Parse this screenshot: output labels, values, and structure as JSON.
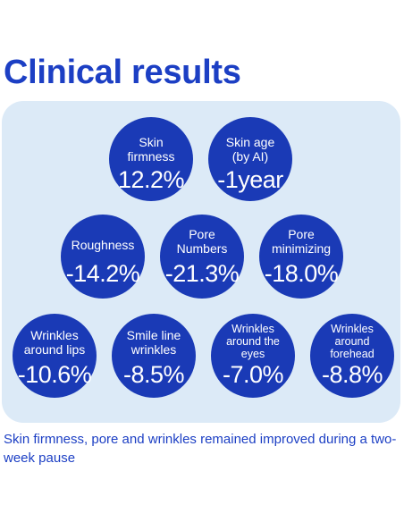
{
  "title": "Clinical results",
  "results": [
    {
      "label": "Skin firmness",
      "value": "12.2%"
    },
    {
      "label": "Skin age (by AI)",
      "value": "-1year"
    },
    {
      "label": "Roughness",
      "value": "-14.2%"
    },
    {
      "label": "Pore Numbers",
      "value": "-21.3%"
    },
    {
      "label": "Pore minimizing",
      "value": "-18.0%"
    },
    {
      "label": "Wrinkles around lips",
      "value": "-10.6%"
    },
    {
      "label": "Smile line wrinkles",
      "value": "-8.5%"
    },
    {
      "label": "Wrinkles around the eyes",
      "value": "-7.0%"
    },
    {
      "label": "Wrinkles around forehead",
      "value": "-8.8%"
    }
  ],
  "caption": "Skin firmness, pore and wrinkles remained improved during a two-week pause",
  "colors": {
    "brand_blue": "#1a3ab6",
    "panel_background": "#dceaf7",
    "title_blue": "#1c3fc4"
  }
}
